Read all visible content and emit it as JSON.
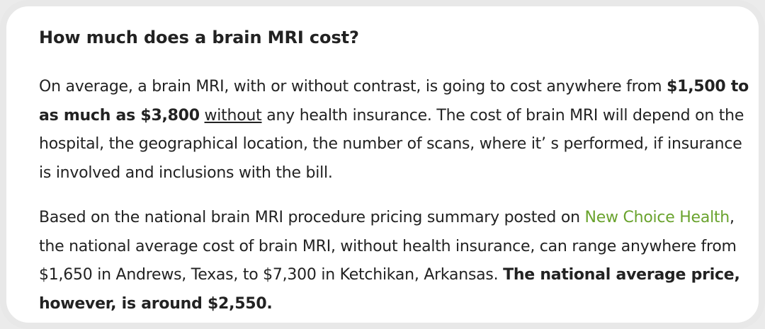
{
  "article": {
    "heading": "How much does a brain MRI cost?",
    "paragraph1": {
      "intro": "On average, a brain MRI, with or without contrast, is going to cost anywhere from ",
      "bold_range": "$1,500 to as much as $3,800",
      "space": " ",
      "underlined": "without",
      "rest": " any health insurance.  The cost of brain MRI will depend on the hospital, the geographical location, the number of scans, where it’  s performed, if insurance is involved and inclusions with the bill."
    },
    "paragraph2": {
      "intro": "Based on the national brain MRI procedure pricing summary posted on ",
      "link_text": "New Choice Health",
      "middle": ", the national average cost of brain MRI, without health insurance, can range anywhere from $1,650 in Andrews, Texas, to $7,300 in Ketchikan, Arkansas.  ",
      "bold_conclusion": "The national average price, however, is around $2,550."
    }
  },
  "colors": {
    "link": "#6aa32e",
    "text": "#222222",
    "frame": "#e8e8e8"
  }
}
